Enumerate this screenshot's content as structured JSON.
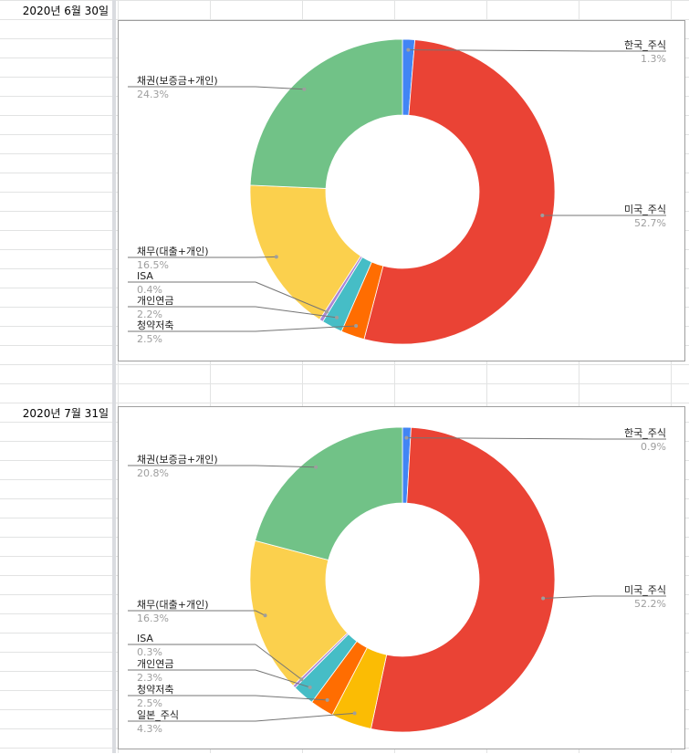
{
  "sheet": {
    "dates": [
      "2020년 6월 30일",
      "2020년 7월 31일"
    ]
  },
  "chart_data": [
    {
      "type": "pie",
      "donut": true,
      "title": "",
      "legend": "none",
      "slices": [
        {
          "label": "한국_주식",
          "value": 1.3,
          "display": "1.3%",
          "color": "#4285f4"
        },
        {
          "label": "미국_주식",
          "value": 52.7,
          "display": "52.7%",
          "color": "#ea4335"
        },
        {
          "label": "청약저축",
          "value": 2.5,
          "display": "2.5%",
          "color": "#ff6d01"
        },
        {
          "label": "개인연금",
          "value": 2.2,
          "display": "2.2%",
          "color": "#46bdc6"
        },
        {
          "label": "ISA",
          "value": 0.4,
          "display": "0.4%",
          "color": "#ab87d6"
        },
        {
          "label": "채무(대출+개인)",
          "value": 16.5,
          "display": "16.5%",
          "color": "#fbd04d"
        },
        {
          "label": "채권(보증금+개인)",
          "value": 24.3,
          "display": "24.3%",
          "color": "#71c287"
        }
      ]
    },
    {
      "type": "pie",
      "donut": true,
      "title": "",
      "legend": "none",
      "slices": [
        {
          "label": "한국_주식",
          "value": 0.9,
          "display": "0.9%",
          "color": "#4285f4"
        },
        {
          "label": "미국_주식",
          "value": 52.2,
          "display": "52.2%",
          "color": "#ea4335"
        },
        {
          "label": "일본_주식",
          "value": 4.3,
          "display": "4.3%",
          "color": "#fbbc04"
        },
        {
          "label": "청약저축",
          "value": 2.5,
          "display": "2.5%",
          "color": "#ff6d01"
        },
        {
          "label": "개인연금",
          "value": 2.3,
          "display": "2.3%",
          "color": "#46bdc6"
        },
        {
          "label": "ISA",
          "value": 0.3,
          "display": "0.3%",
          "color": "#ab87d6"
        },
        {
          "label": "채무(대출+개인)",
          "value": 16.3,
          "display": "16.3%",
          "color": "#fbd04d"
        },
        {
          "label": "채권(보증금+개인)",
          "value": 20.8,
          "display": "20.8%",
          "color": "#71c287"
        }
      ]
    }
  ]
}
